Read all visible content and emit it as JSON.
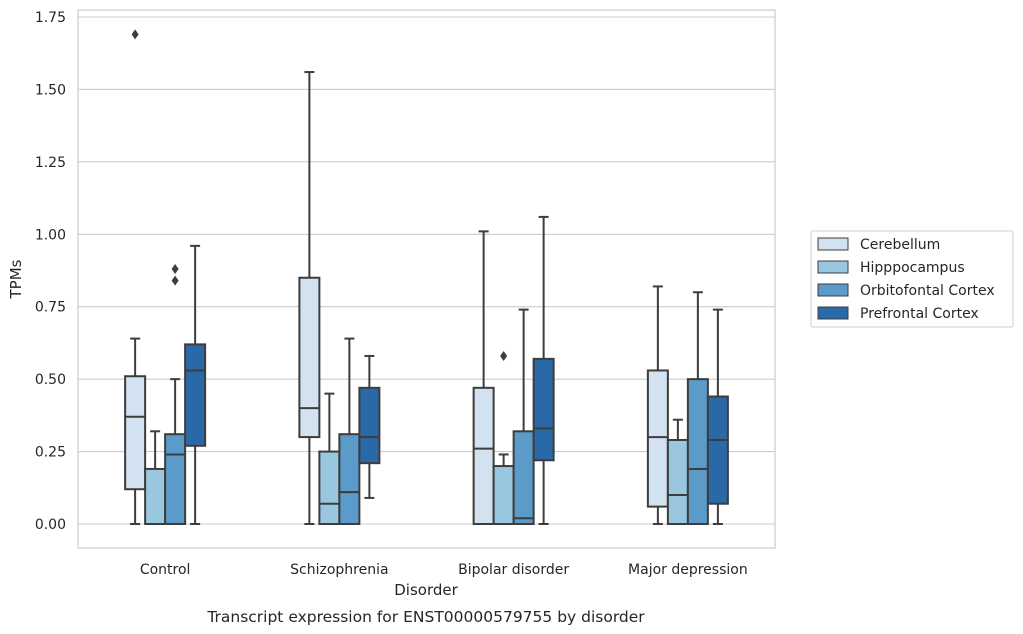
{
  "chart_data": {
    "type": "box",
    "title": "Transcript expression for ENST00000579755 by disorder",
    "xlabel": "Disorder",
    "ylabel": "TPMs",
    "ylim": [
      -0.08,
      1.77
    ],
    "yticks": [
      0.0,
      0.25,
      0.5,
      0.75,
      1.0,
      1.25,
      1.5,
      1.75
    ],
    "ytick_labels": [
      "0.00",
      "0.25",
      "0.50",
      "0.75",
      "1.00",
      "1.25",
      "1.50",
      "1.75"
    ],
    "grid": true,
    "legend_position": "right",
    "categories": [
      "Control",
      "Schizophrenia",
      "Bipolar disorder",
      "Major depression"
    ],
    "series": [
      {
        "name": "Cerebellum",
        "color": "#d2e2f1",
        "boxes": [
          {
            "whisker_low": 0.0,
            "q1": 0.12,
            "median": 0.37,
            "q3": 0.51,
            "whisker_high": 0.64,
            "outliers": [
              1.69
            ]
          },
          {
            "whisker_low": 0.0,
            "q1": 0.3,
            "median": 0.4,
            "q3": 0.85,
            "whisker_high": 1.56,
            "outliers": []
          },
          {
            "whisker_low": 0.0,
            "q1": 0.0,
            "median": 0.26,
            "q3": 0.47,
            "whisker_high": 1.01,
            "outliers": []
          },
          {
            "whisker_low": 0.0,
            "q1": 0.06,
            "median": 0.3,
            "q3": 0.53,
            "whisker_high": 0.82,
            "outliers": []
          }
        ]
      },
      {
        "name": "Hipppocampus",
        "color": "#9ac7e0",
        "boxes": [
          {
            "whisker_low": 0.0,
            "q1": 0.0,
            "median": 0.0,
            "q3": 0.19,
            "whisker_high": 0.32,
            "outliers": []
          },
          {
            "whisker_low": 0.0,
            "q1": 0.0,
            "median": 0.07,
            "q3": 0.25,
            "whisker_high": 0.45,
            "outliers": []
          },
          {
            "whisker_low": 0.0,
            "q1": 0.0,
            "median": 0.0,
            "q3": 0.2,
            "whisker_high": 0.24,
            "outliers": [
              0.58
            ]
          },
          {
            "whisker_low": 0.0,
            "q1": 0.0,
            "median": 0.1,
            "q3": 0.29,
            "whisker_high": 0.36,
            "outliers": []
          }
        ]
      },
      {
        "name": "Orbitofontal Cortex",
        "color": "#5a9bc9",
        "boxes": [
          {
            "whisker_low": 0.0,
            "q1": 0.0,
            "median": 0.24,
            "q3": 0.31,
            "whisker_high": 0.5,
            "outliers": [
              0.84,
              0.88
            ]
          },
          {
            "whisker_low": 0.0,
            "q1": 0.0,
            "median": 0.11,
            "q3": 0.31,
            "whisker_high": 0.64,
            "outliers": []
          },
          {
            "whisker_low": 0.0,
            "q1": 0.0,
            "median": 0.02,
            "q3": 0.32,
            "whisker_high": 0.74,
            "outliers": []
          },
          {
            "whisker_low": 0.0,
            "q1": 0.0,
            "median": 0.19,
            "q3": 0.5,
            "whisker_high": 0.8,
            "outliers": []
          }
        ]
      },
      {
        "name": "Prefrontal Cortex",
        "color": "#2a69a8",
        "boxes": [
          {
            "whisker_low": 0.0,
            "q1": 0.27,
            "median": 0.53,
            "q3": 0.62,
            "whisker_high": 0.96,
            "outliers": []
          },
          {
            "whisker_low": 0.09,
            "q1": 0.21,
            "median": 0.3,
            "q3": 0.47,
            "whisker_high": 0.58,
            "outliers": []
          },
          {
            "whisker_low": 0.0,
            "q1": 0.22,
            "median": 0.33,
            "q3": 0.57,
            "whisker_high": 1.06,
            "outliers": []
          },
          {
            "whisker_low": 0.0,
            "q1": 0.07,
            "median": 0.29,
            "q3": 0.44,
            "whisker_high": 0.74,
            "outliers": []
          }
        ]
      }
    ]
  }
}
